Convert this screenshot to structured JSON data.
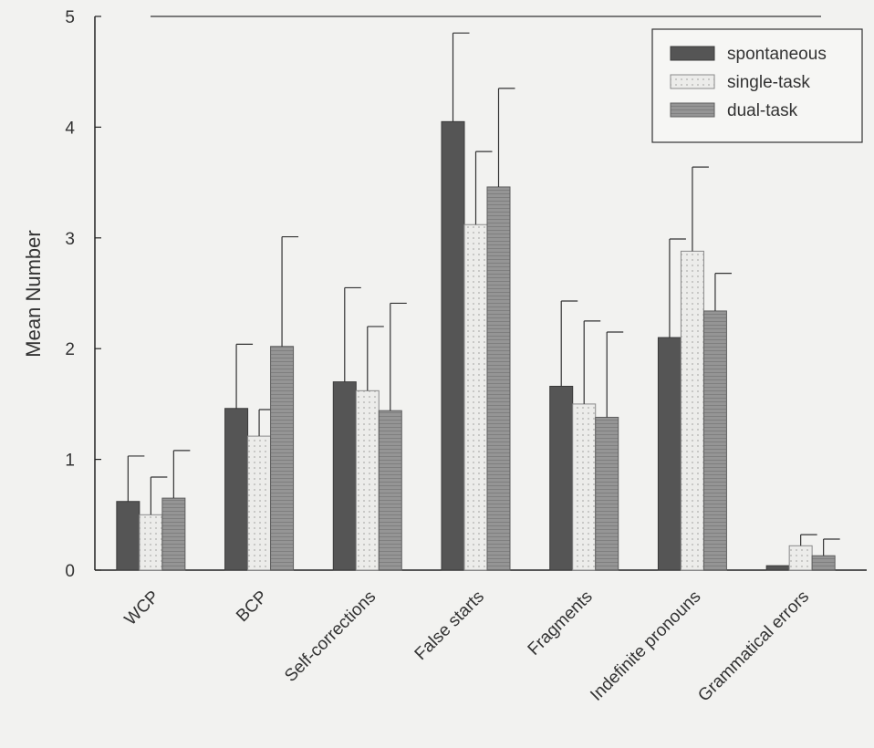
{
  "chart_data": {
    "type": "bar",
    "ylabel": "Mean Number",
    "ylim": [
      0,
      5
    ],
    "yticks": [
      0,
      1,
      2,
      3,
      4,
      5
    ],
    "grid": false,
    "legend_position": "top-right",
    "error_bars": "upper",
    "categories": [
      "WCP",
      "BCP",
      "Self-corrections",
      "False starts",
      "Fragments",
      "Indefinite pronouns",
      "Grammatical errors"
    ],
    "series": [
      {
        "name": "spontaneous",
        "color": "#555555",
        "pattern": "solid-dark",
        "values": [
          0.62,
          1.46,
          1.7,
          4.05,
          1.66,
          2.1,
          0.04
        ],
        "errors": [
          0.41,
          0.58,
          0.85,
          0.8,
          0.77,
          0.89,
          0.0
        ]
      },
      {
        "name": "single-task",
        "color": "#e8e8e6",
        "pattern": "dotted-light",
        "values": [
          0.5,
          1.21,
          1.62,
          3.12,
          1.5,
          2.88,
          0.22
        ],
        "errors": [
          0.34,
          0.24,
          0.58,
          0.66,
          0.75,
          0.76,
          0.1
        ]
      },
      {
        "name": "dual-task",
        "color": "#8f8f8f",
        "pattern": "hatched-medium",
        "values": [
          0.65,
          2.02,
          1.44,
          3.46,
          1.38,
          2.34,
          0.13
        ],
        "errors": [
          0.43,
          0.99,
          0.97,
          0.89,
          0.77,
          0.34,
          0.15
        ]
      }
    ]
  }
}
